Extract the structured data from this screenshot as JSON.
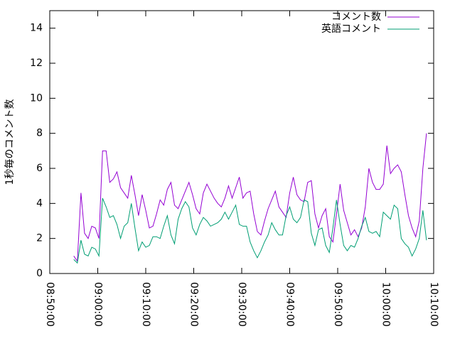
{
  "chart_data": {
    "type": "line",
    "ylabel": "1秒毎のコメント数",
    "x": [
      "08:55:00",
      "08:55:45",
      "08:56:30",
      "08:57:15",
      "08:58:00",
      "08:58:45",
      "08:59:30",
      "09:00:15",
      "09:01:00",
      "09:01:45",
      "09:02:30",
      "09:03:15",
      "09:04:00",
      "09:04:45",
      "09:05:30",
      "09:06:15",
      "09:07:00",
      "09:07:45",
      "09:08:30",
      "09:09:15",
      "09:10:00",
      "09:10:45",
      "09:11:30",
      "09:12:15",
      "09:13:00",
      "09:13:45",
      "09:14:30",
      "09:15:15",
      "09:16:00",
      "09:16:45",
      "09:17:30",
      "09:18:15",
      "09:19:00",
      "09:19:45",
      "09:20:30",
      "09:21:15",
      "09:22:00",
      "09:22:45",
      "09:23:30",
      "09:24:15",
      "09:25:00",
      "09:25:45",
      "09:26:30",
      "09:27:15",
      "09:28:00",
      "09:28:45",
      "09:29:30",
      "09:30:15",
      "09:31:00",
      "09:31:45",
      "09:32:30",
      "09:33:15",
      "09:34:00",
      "09:34:45",
      "09:35:30",
      "09:36:15",
      "09:37:00",
      "09:37:45",
      "09:38:30",
      "09:39:15",
      "09:40:00",
      "09:40:45",
      "09:41:30",
      "09:42:15",
      "09:43:00",
      "09:43:45",
      "09:44:30",
      "09:45:15",
      "09:46:00",
      "09:46:45",
      "09:47:30",
      "09:48:15",
      "09:49:00",
      "09:49:45",
      "09:50:30",
      "09:51:15",
      "09:52:00",
      "09:52:45",
      "09:53:30",
      "09:54:15",
      "09:55:00",
      "09:55:45",
      "09:56:30",
      "09:57:15",
      "09:58:00",
      "09:58:45",
      "09:59:30",
      "10:00:15",
      "10:01:00",
      "10:01:45",
      "10:02:30",
      "10:03:15",
      "10:04:00",
      "10:04:45",
      "10:05:30",
      "10:06:15",
      "10:07:00",
      "10:07:45",
      "10:08:30"
    ],
    "series": [
      {
        "name": "コメント数",
        "color": "#9400d3",
        "values": [
          1.0,
          0.7,
          4.6,
          2.3,
          2.0,
          2.7,
          2.6,
          2.0,
          7.0,
          7.0,
          5.2,
          5.4,
          5.8,
          4.9,
          4.6,
          4.3,
          5.6,
          4.5,
          3.3,
          4.5,
          3.6,
          2.6,
          2.7,
          3.4,
          4.2,
          3.9,
          4.8,
          5.2,
          3.9,
          3.7,
          4.2,
          4.7,
          5.2,
          4.5,
          3.7,
          3.4,
          4.6,
          5.1,
          4.7,
          4.3,
          4.0,
          3.8,
          4.3,
          5.0,
          4.3,
          4.9,
          5.5,
          4.3,
          4.6,
          4.7,
          3.4,
          2.4,
          2.2,
          3.0,
          3.7,
          4.2,
          4.7,
          3.8,
          3.5,
          3.2,
          4.6,
          5.5,
          4.5,
          4.2,
          4.1,
          5.2,
          5.3,
          3.4,
          2.6,
          3.3,
          3.7,
          2.1,
          1.8,
          3.4,
          5.1,
          3.6,
          2.9,
          2.2,
          2.5,
          2.1,
          2.6,
          3.8,
          6.0,
          5.2,
          4.8,
          4.8,
          5.1,
          7.3,
          5.7,
          6.0,
          6.2,
          5.8,
          4.5,
          3.3,
          2.6,
          2.1,
          3.0,
          6.0,
          8.0
        ]
      },
      {
        "name": "英語コメント",
        "color": "#009e73",
        "values": [
          0.8,
          0.6,
          1.9,
          1.1,
          1.0,
          1.5,
          1.4,
          1.0,
          4.3,
          3.8,
          3.2,
          3.3,
          2.8,
          2.0,
          2.7,
          2.9,
          4.0,
          2.6,
          1.3,
          1.8,
          1.5,
          1.6,
          2.1,
          2.1,
          2.0,
          2.7,
          3.3,
          2.2,
          1.7,
          3.1,
          3.7,
          4.1,
          3.8,
          2.6,
          2.2,
          2.8,
          3.2,
          3.0,
          2.7,
          2.8,
          2.9,
          3.1,
          3.5,
          3.1,
          3.5,
          3.9,
          2.8,
          2.7,
          2.7,
          1.8,
          1.3,
          0.9,
          1.3,
          1.8,
          2.2,
          2.9,
          2.5,
          2.2,
          2.2,
          3.3,
          3.8,
          3.1,
          2.9,
          3.2,
          4.2,
          4.1,
          2.3,
          1.6,
          2.5,
          2.6,
          1.6,
          1.2,
          2.6,
          4.2,
          2.8,
          1.6,
          1.3,
          1.6,
          1.5,
          2.0,
          2.7,
          3.2,
          2.4,
          2.3,
          2.4,
          2.1,
          3.5,
          3.3,
          3.1,
          3.9,
          3.7,
          2.0,
          1.7,
          1.5,
          1.0,
          1.4,
          2.0,
          3.6,
          1.9
        ]
      }
    ],
    "xlim": [
      "08:50:00",
      "10:10:00"
    ],
    "xticks": [
      "08:50:00",
      "09:00:00",
      "09:10:00",
      "09:20:00",
      "09:30:00",
      "09:40:00",
      "09:50:00",
      "10:00:00",
      "10:10:00"
    ],
    "ylim": [
      0,
      15
    ],
    "yticks": [
      0,
      2,
      4,
      6,
      8,
      10,
      12,
      14
    ],
    "legend": "top-right"
  }
}
